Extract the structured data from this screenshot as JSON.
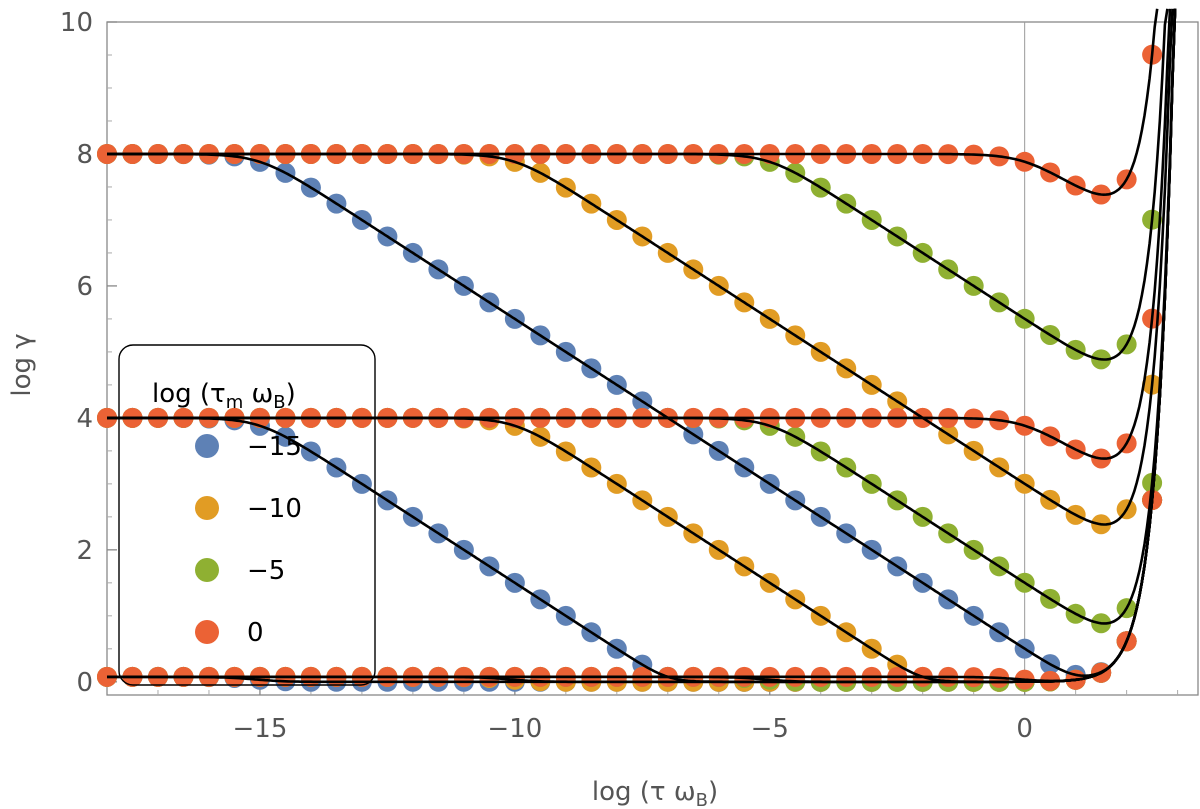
{
  "chart_data": {
    "type": "scatter",
    "xlabel": "log (τ ω",
    "xlabel_sub": "B",
    "xlabel_close": ")",
    "ylabel": "log γ",
    "xlim": [
      -18,
      3.4
    ],
    "ylim": [
      -0.2,
      10
    ],
    "xticks": [
      -15,
      -10,
      -5,
      0
    ],
    "xtick_labels": [
      "−15",
      "−10",
      "−5",
      "0"
    ],
    "yticks": [
      0,
      2,
      4,
      6,
      8,
      10
    ],
    "ytick_labels": [
      "0",
      "2",
      "4",
      "6",
      "8",
      "10"
    ],
    "vline_x": 0,
    "legend": {
      "title": "log (τ",
      "title_sub1": "m",
      "title_mid": " ω",
      "title_sub2": "B",
      "title_close": ")",
      "entries": [
        {
          "label": "−15",
          "color": "#5e81b5"
        },
        {
          "label": "−10",
          "color": "#e19c24"
        },
        {
          "label": "−5",
          "color": "#8fb032"
        },
        {
          "label": "0",
          "color": "#eb6235"
        }
      ]
    },
    "series": [
      {
        "name": "gamma0=1e8, log(tau_m wB)=-15",
        "color": "#5e81b5",
        "g0": 8,
        "p": -15
      },
      {
        "name": "gamma0=1e4, log(tau_m wB)=-15",
        "color": "#5e81b5",
        "g0": 4,
        "p": -15
      },
      {
        "name": "gamma0=1e0, log(tau_m wB)=-15",
        "color": "#5e81b5",
        "g0": 0,
        "p": -15
      },
      {
        "name": "gamma0=1e8, log(tau_m wB)=-10",
        "color": "#e19c24",
        "g0": 8,
        "p": -10
      },
      {
        "name": "gamma0=1e4, log(tau_m wB)=-10",
        "color": "#e19c24",
        "g0": 4,
        "p": -10
      },
      {
        "name": "gamma0=1e0, log(tau_m wB)=-10",
        "color": "#e19c24",
        "g0": 0,
        "p": -10
      },
      {
        "name": "gamma0=1e8, log(tau_m wB)=-5",
        "color": "#8fb032",
        "g0": 8,
        "p": -5
      },
      {
        "name": "gamma0=1e4, log(tau_m wB)=-5",
        "color": "#8fb032",
        "g0": 4,
        "p": -5
      },
      {
        "name": "gamma0=1e0, log(tau_m wB)=-5",
        "color": "#8fb032",
        "g0": 0,
        "p": -5
      },
      {
        "name": "gamma0=1e8, log(tau_m wB)=0",
        "color": "#eb6235",
        "g0": 8,
        "p": 0
      },
      {
        "name": "gamma0=1e4, log(tau_m wB)=0",
        "color": "#eb6235",
        "g0": 4,
        "p": 0
      },
      {
        "name": "gamma0=1e0, log(tau_m wB)=0",
        "color": "#eb6235",
        "g0": 0,
        "p": 0
      }
    ],
    "marker_x": {
      "start": -18,
      "step": 0.5,
      "end": 3.0
    },
    "model": "log gamma = min(g0, max(-log(tau wB)/... , 0)) transition; curves rise sharply near log(tau wB) ~ 2-3",
    "fit_line_color": "#000000"
  }
}
